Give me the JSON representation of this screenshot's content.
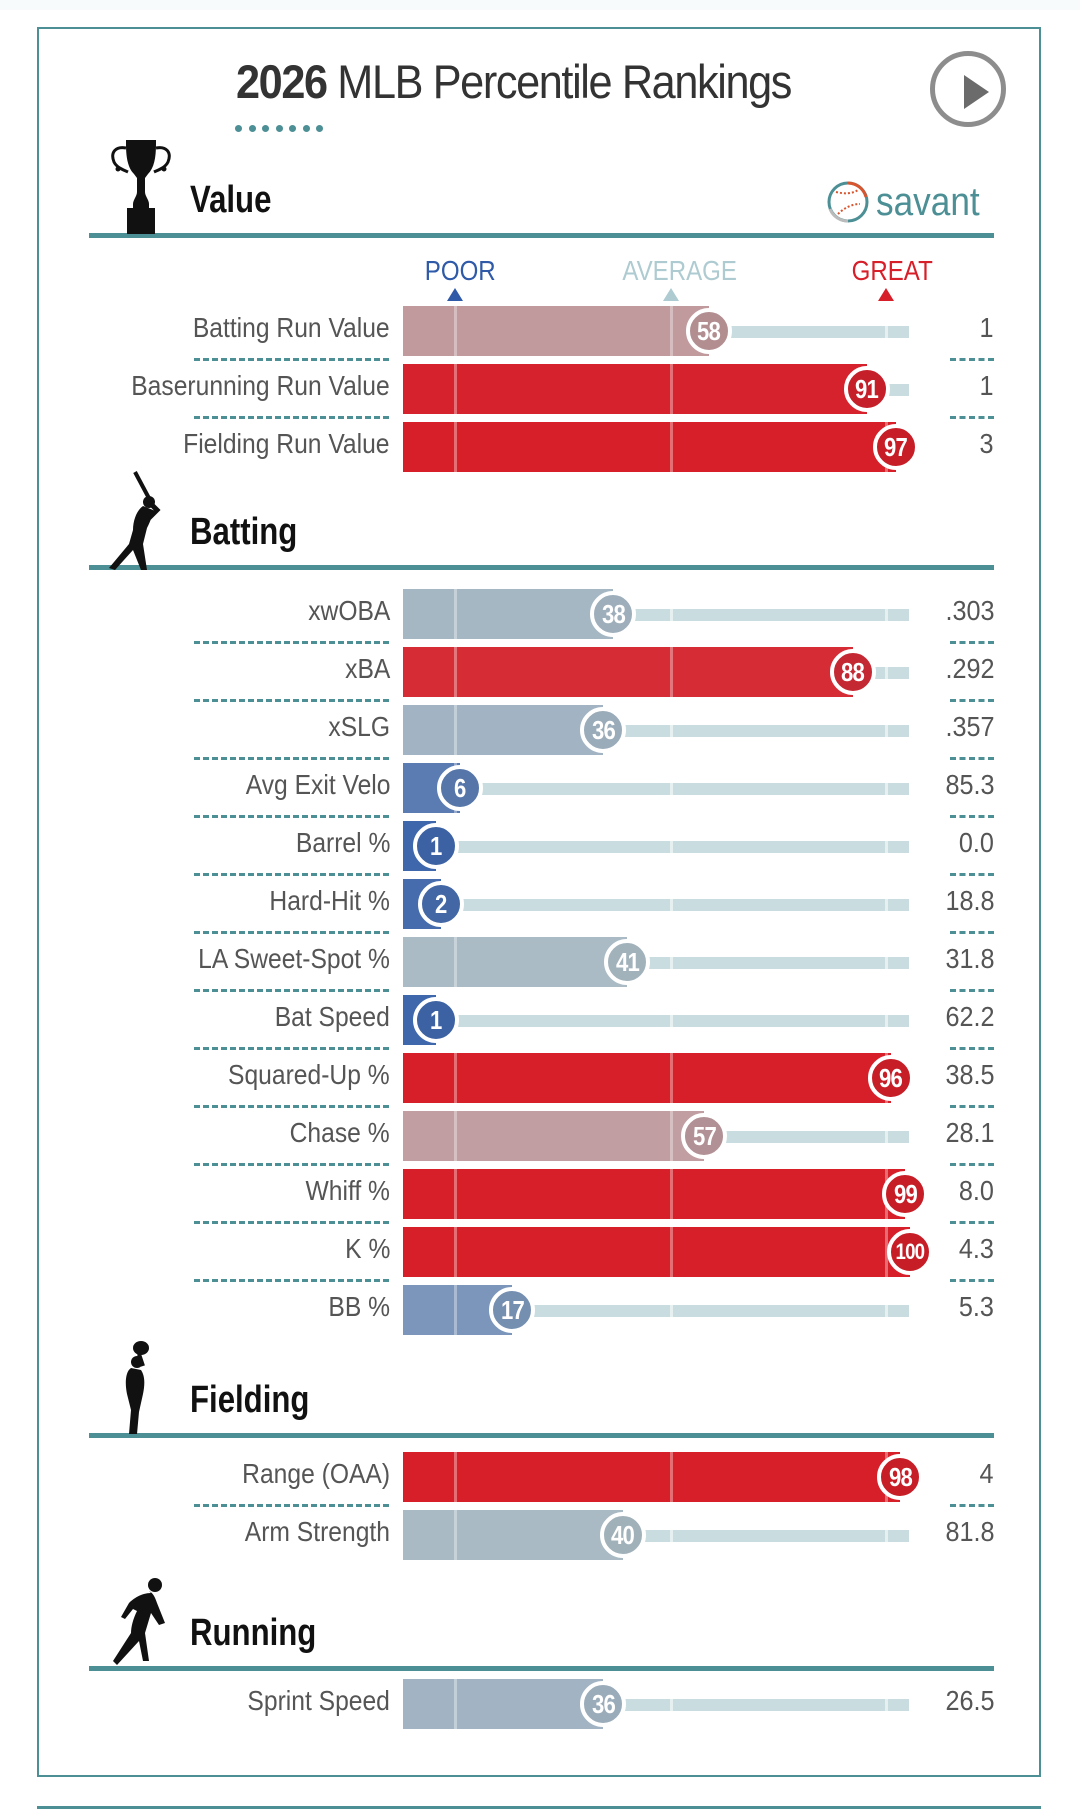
{
  "header": {
    "title_year": "2026",
    "title_rest": " MLB Percentile Rankings",
    "play_button": "play-icon",
    "brand": "savant"
  },
  "legend": {
    "poor": "POOR",
    "average": "AVERAGE",
    "great": "GREAT",
    "poor_percentile": 5,
    "average_percentile": 50,
    "great_percentile": 95
  },
  "colors": {
    "accent": "#4c8f95",
    "poor": "#2f5aa8",
    "average": "#b8c9cd",
    "great": "#d71f2a",
    "track": "#c9dde0"
  },
  "chart_data": {
    "type": "bar",
    "title": "2026 MLB Percentile Rankings",
    "xlabel": "Percentile",
    "xlim": [
      0,
      100
    ],
    "scale_labels": [
      "POOR",
      "AVERAGE",
      "GREAT"
    ],
    "sections": [
      {
        "name": "Value",
        "icon": "trophy-icon",
        "metrics": [
          {
            "label": "Batting Run Value",
            "percentile": 58,
            "value": "1"
          },
          {
            "label": "Baserunning Run Value",
            "percentile": 91,
            "value": "1"
          },
          {
            "label": "Fielding Run Value",
            "percentile": 97,
            "value": "3"
          }
        ]
      },
      {
        "name": "Batting",
        "icon": "batter-icon",
        "metrics": [
          {
            "label": "xwOBA",
            "percentile": 38,
            "value": ".303"
          },
          {
            "label": "xBA",
            "percentile": 88,
            "value": ".292"
          },
          {
            "label": "xSLG",
            "percentile": 36,
            "value": ".357"
          },
          {
            "label": "Avg Exit Velo",
            "percentile": 6,
            "value": "85.3"
          },
          {
            "label": "Barrel %",
            "percentile": 1,
            "value": "0.0"
          },
          {
            "label": "Hard-Hit %",
            "percentile": 2,
            "value": "18.8"
          },
          {
            "label": "LA Sweet-Spot %",
            "percentile": 41,
            "value": "31.8"
          },
          {
            "label": "Bat Speed",
            "percentile": 1,
            "value": "62.2"
          },
          {
            "label": "Squared-Up %",
            "percentile": 96,
            "value": "38.5"
          },
          {
            "label": "Chase %",
            "percentile": 57,
            "value": "28.1"
          },
          {
            "label": "Whiff %",
            "percentile": 99,
            "value": "8.0"
          },
          {
            "label": "K %",
            "percentile": 100,
            "value": "4.3"
          },
          {
            "label": "BB %",
            "percentile": 17,
            "value": "5.3"
          }
        ]
      },
      {
        "name": "Fielding",
        "icon": "fielder-icon",
        "metrics": [
          {
            "label": "Range (OAA)",
            "percentile": 98,
            "value": "4"
          },
          {
            "label": "Arm Strength",
            "percentile": 40,
            "value": "81.8"
          }
        ]
      },
      {
        "name": "Running",
        "icon": "runner-icon",
        "metrics": [
          {
            "label": "Sprint Speed",
            "percentile": 36,
            "value": "26.5"
          }
        ]
      }
    ]
  }
}
